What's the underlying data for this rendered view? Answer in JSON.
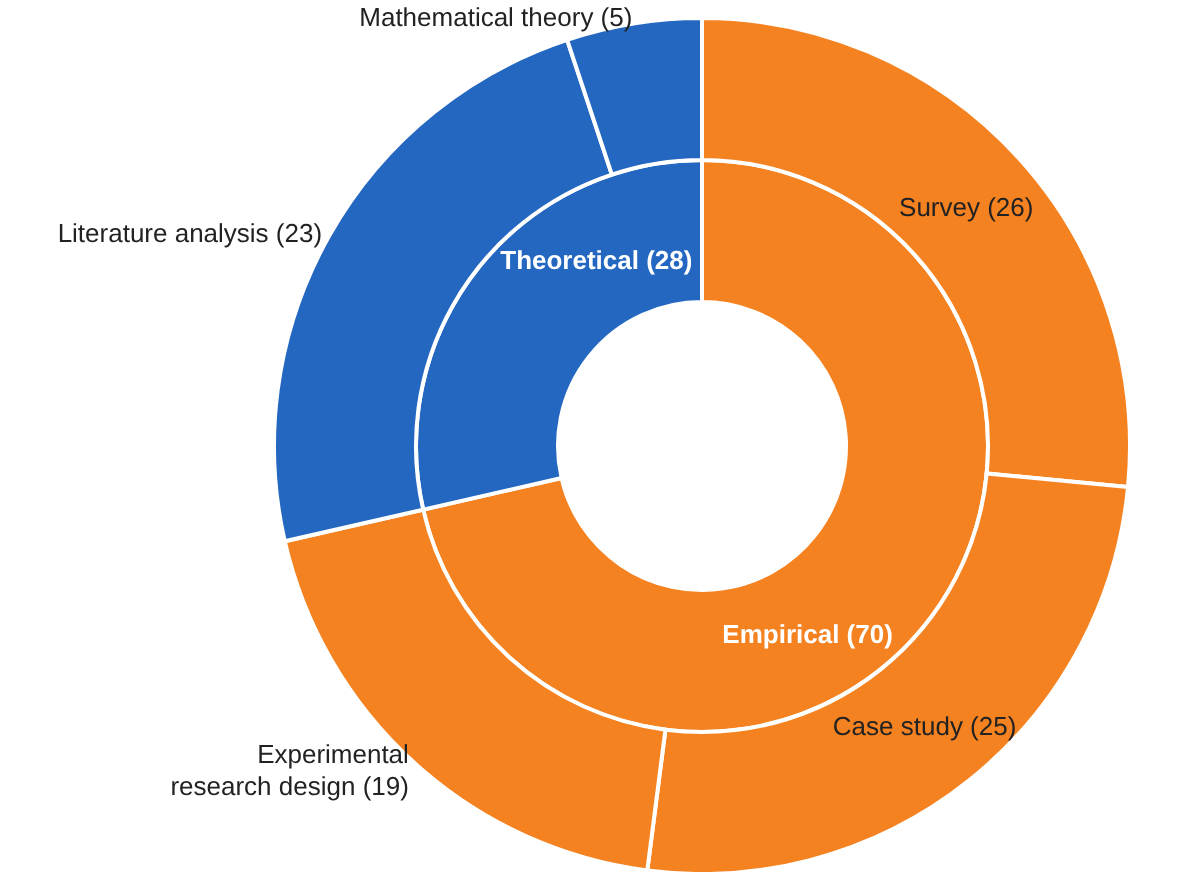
{
  "chart_data": [
    {
      "type": "donut",
      "categories": [
        "Empirical",
        "Theoretical"
      ],
      "values": [
        70,
        28
      ],
      "value_labels": [
        "(70)",
        "(28)"
      ],
      "colors": [
        "#f58220",
        "#2367c0"
      ]
    },
    {
      "type": "donut",
      "categories": [
        "Survey",
        "Case study",
        "Experimental research design",
        "Literature analysis",
        "Mathematical theory"
      ],
      "values": [
        26,
        25,
        19,
        23,
        5
      ],
      "value_labels": [
        "(26)",
        "(25)",
        "(19)",
        "(23)",
        "(5)"
      ],
      "colors": [
        "#f58220",
        "#f58220",
        "#f58220",
        "#2367c0",
        "#2367c0"
      ]
    }
  ]
}
